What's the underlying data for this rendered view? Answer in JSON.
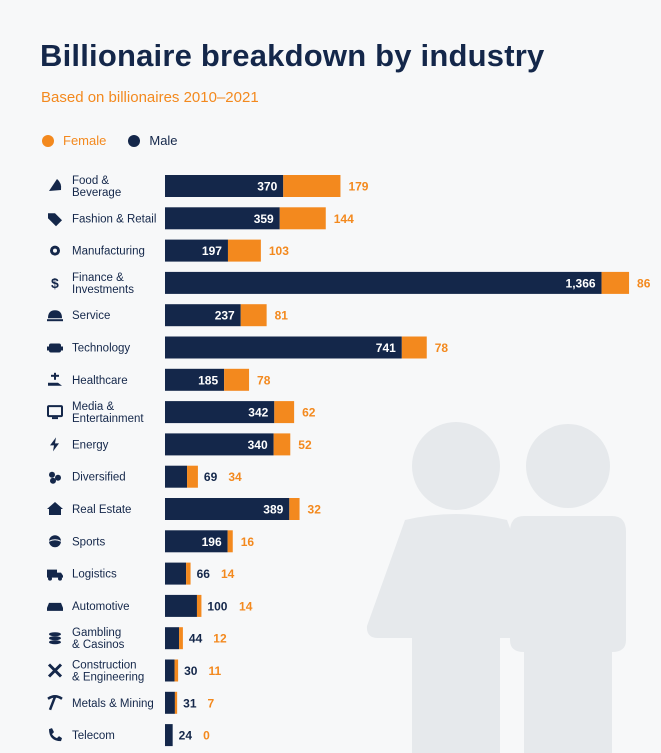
{
  "header": {
    "title": "Billionaire breakdown by industry",
    "subtitle": "Based on billionaires 2010–2021"
  },
  "legend": {
    "female_label": "Female",
    "male_label": "Male"
  },
  "colors": {
    "male": "#14274a",
    "female": "#f3891e",
    "silhouette": "#e6e9ec"
  },
  "chart_data": {
    "type": "bar",
    "orientation": "horizontal",
    "stacked": true,
    "title": "Billionaire breakdown by industry",
    "subtitle": "Based on billionaires 2010–2021",
    "legend": [
      "Female",
      "Male"
    ],
    "legend_position": "top-left",
    "categories": [
      {
        "label_lines": [
          "Food &",
          "Beverage"
        ],
        "icon": "pizza-icon"
      },
      {
        "label_lines": [
          "Fashion & Retail"
        ],
        "icon": "tag-icon"
      },
      {
        "label_lines": [
          "Manufacturing"
        ],
        "icon": "gear-icon"
      },
      {
        "label_lines": [
          "Finance &",
          "Investments"
        ],
        "icon": "dollar-icon"
      },
      {
        "label_lines": [
          "Service"
        ],
        "icon": "service-bell-icon"
      },
      {
        "label_lines": [
          "Technology"
        ],
        "icon": "robot-icon"
      },
      {
        "label_lines": [
          "Healthcare"
        ],
        "icon": "medical-hand-icon"
      },
      {
        "label_lines": [
          "Media &",
          "Entertainment"
        ],
        "icon": "monitor-icon"
      },
      {
        "label_lines": [
          "Energy"
        ],
        "icon": "lightning-icon"
      },
      {
        "label_lines": [
          "Diversified"
        ],
        "icon": "diversified-icon"
      },
      {
        "label_lines": [
          "Real Estate"
        ],
        "icon": "house-icon"
      },
      {
        "label_lines": [
          "Sports"
        ],
        "icon": "ball-icon"
      },
      {
        "label_lines": [
          "Logistics"
        ],
        "icon": "truck-icon"
      },
      {
        "label_lines": [
          "Automotive"
        ],
        "icon": "car-icon"
      },
      {
        "label_lines": [
          "Gambling",
          "& Casinos"
        ],
        "icon": "coins-icon"
      },
      {
        "label_lines": [
          "Construction",
          "& Engineering"
        ],
        "icon": "tools-icon"
      },
      {
        "label_lines": [
          "Metals & Mining"
        ],
        "icon": "pickaxe-icon"
      },
      {
        "label_lines": [
          "Telecom"
        ],
        "icon": "phone-icon"
      }
    ],
    "series": [
      {
        "name": "Male",
        "color": "#14274a",
        "values": [
          370,
          359,
          197,
          1366,
          237,
          741,
          185,
          342,
          340,
          69,
          389,
          196,
          66,
          100,
          44,
          30,
          31,
          24
        ],
        "labels": [
          "370",
          "359",
          "197",
          "1,366",
          "237",
          "741",
          "185",
          "342",
          "340",
          "69",
          "389",
          "196",
          "66",
          "100",
          "44",
          "30",
          "31",
          "24"
        ]
      },
      {
        "name": "Female",
        "color": "#f3891e",
        "values": [
          179,
          144,
          103,
          86,
          81,
          78,
          78,
          62,
          52,
          34,
          32,
          16,
          14,
          14,
          12,
          11,
          7,
          0
        ],
        "labels": [
          "179",
          "144",
          "103",
          "86",
          "81",
          "78",
          "78",
          "62",
          "52",
          "34",
          "32",
          "16",
          "14",
          "14",
          "12",
          "11",
          "7",
          "0"
        ]
      }
    ]
  }
}
